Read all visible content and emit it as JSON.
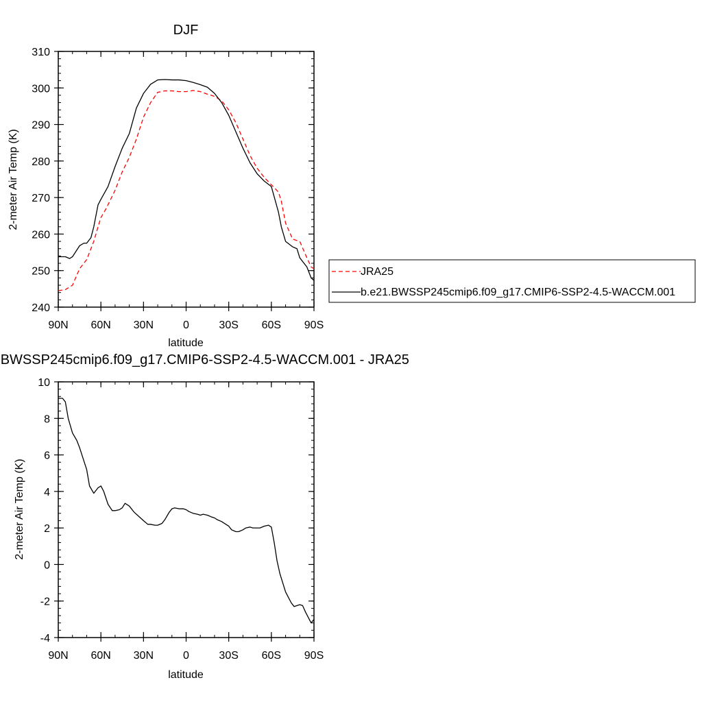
{
  "chart_data": [
    {
      "type": "line",
      "title": "DJF",
      "xlabel": "latitude",
      "ylabel": "2-meter Air Temp (K)",
      "xlim": [
        90,
        -90
      ],
      "ylim": [
        240,
        310
      ],
      "yticks": [
        240,
        250,
        260,
        270,
        280,
        290,
        300,
        310
      ],
      "xticks": [
        {
          "value": 90,
          "label": "90N"
        },
        {
          "value": 60,
          "label": "60N"
        },
        {
          "value": 30,
          "label": "30N"
        },
        {
          "value": 0,
          "label": "0"
        },
        {
          "value": -30,
          "label": "30S"
        },
        {
          "value": -60,
          "label": "60S"
        },
        {
          "value": -90,
          "label": "90S"
        }
      ],
      "legend": {
        "placement": "right",
        "entries": [
          {
            "name": "JRA25",
            "color": "#ff0000",
            "dash": "dashed"
          },
          {
            "name": "b.e21.BWSSP245cmip6.f09_g17.CMIP6-SSP2-4.5-WACCM.001",
            "color": "#000000",
            "dash": "solid"
          }
        ]
      },
      "series": [
        {
          "name": "JRA25",
          "color": "#ff0000",
          "dash": "dashed",
          "x": [
            90,
            85,
            80,
            75,
            70,
            65,
            62,
            60,
            57,
            55,
            50,
            45,
            40,
            35,
            30,
            25,
            20,
            15,
            10,
            5,
            0,
            -5,
            -10,
            -15,
            -20,
            -25,
            -30,
            -35,
            -40,
            -45,
            -50,
            -55,
            -60,
            -65,
            -67,
            -70,
            -75,
            -80,
            -85,
            -88,
            -90
          ],
          "y": [
            244.5,
            244.8,
            246.0,
            250.5,
            253.0,
            258.0,
            262.0,
            264.5,
            266.5,
            268.0,
            272.0,
            277.0,
            281.0,
            286.0,
            292.0,
            296.0,
            298.8,
            299.2,
            299.2,
            299.0,
            299.0,
            299.3,
            299.0,
            298.3,
            297.7,
            296.5,
            294.0,
            290.5,
            286.0,
            281.5,
            278.0,
            275.5,
            273.5,
            271.5,
            269.0,
            263.0,
            258.6,
            258.0,
            253.5,
            251.0,
            250.5
          ]
        },
        {
          "name": "b.e21.BWSSP245cmip6.f09_g17.CMIP6-SSP2-4.5-WACCM.001",
          "color": "#000000",
          "dash": "solid",
          "x": [
            90,
            85,
            82,
            80,
            75,
            72,
            70,
            67,
            65,
            62,
            60,
            55,
            50,
            45,
            40,
            35,
            30,
            25,
            20,
            15,
            10,
            5,
            0,
            -5,
            -10,
            -15,
            -20,
            -25,
            -30,
            -35,
            -40,
            -45,
            -50,
            -55,
            -60,
            -65,
            -67,
            -70,
            -75,
            -78,
            -80,
            -85,
            -88,
            -90
          ],
          "y": [
            253.8,
            253.8,
            253.3,
            253.8,
            256.8,
            257.5,
            257.5,
            259.0,
            262.0,
            268.0,
            269.5,
            273.0,
            278.5,
            283.5,
            287.5,
            294.5,
            298.5,
            301.0,
            302.2,
            302.3,
            302.2,
            302.2,
            302.0,
            301.5,
            300.9,
            300.2,
            298.5,
            296.0,
            292.5,
            288.0,
            283.5,
            279.5,
            276.5,
            274.5,
            273.0,
            266.0,
            262.0,
            258.0,
            256.5,
            256.0,
            253.5,
            251.0,
            248.0,
            247.3
          ]
        }
      ]
    },
    {
      "type": "line",
      "title": "b.e21.BWSSP245cmip6.f09_g17.CMIP6-SSP2-4.5-WACCM.001 - JRA25",
      "xlabel": "latitude",
      "ylabel": "2-meter Air Temp (K)",
      "xlim": [
        90,
        -90
      ],
      "ylim": [
        -4,
        10
      ],
      "yticks": [
        -4,
        -2,
        0,
        2,
        4,
        6,
        8,
        10
      ],
      "xticks": [
        {
          "value": 90,
          "label": "90N"
        },
        {
          "value": 60,
          "label": "60N"
        },
        {
          "value": 30,
          "label": "30N"
        },
        {
          "value": 0,
          "label": "0"
        },
        {
          "value": -30,
          "label": "30S"
        },
        {
          "value": -60,
          "label": "60S"
        },
        {
          "value": -90,
          "label": "90S"
        }
      ],
      "series": [
        {
          "name": "b.e21.BWSSP245cmip6.f09_g17.CMIP6-SSP2-4.5-WACCM.001 - JRA25",
          "color": "#000000",
          "dash": "solid",
          "x": [
            90,
            87,
            85,
            83,
            80,
            77,
            75,
            70,
            68,
            65,
            62,
            60,
            58,
            55,
            52,
            50,
            47,
            45,
            43,
            40,
            37,
            35,
            30,
            27,
            25,
            22,
            20,
            17,
            15,
            12,
            10,
            8,
            5,
            2,
            0,
            -2,
            -5,
            -8,
            -10,
            -12,
            -15,
            -18,
            -20,
            -22,
            -25,
            -28,
            -30,
            -32,
            -35,
            -37,
            -40,
            -42,
            -45,
            -47,
            -50,
            -52,
            -55,
            -58,
            -60,
            -62,
            -64,
            -66,
            -68,
            -70,
            -72,
            -74,
            -76,
            -78,
            -80,
            -82,
            -84,
            -86,
            -88,
            -90
          ],
          "y": [
            9.1,
            9.1,
            8.9,
            8.0,
            7.2,
            6.8,
            6.4,
            5.2,
            4.3,
            3.9,
            4.2,
            4.3,
            4.0,
            3.3,
            2.95,
            2.95,
            3.0,
            3.1,
            3.35,
            3.2,
            2.9,
            2.75,
            2.4,
            2.2,
            2.2,
            2.15,
            2.15,
            2.25,
            2.45,
            2.85,
            3.05,
            3.1,
            3.05,
            3.05,
            3.0,
            2.9,
            2.8,
            2.75,
            2.7,
            2.75,
            2.7,
            2.6,
            2.55,
            2.45,
            2.35,
            2.2,
            2.1,
            1.9,
            1.8,
            1.8,
            1.9,
            2.0,
            2.05,
            2.0,
            2.0,
            2.0,
            2.1,
            2.15,
            2.05,
            1.2,
            0.2,
            -0.5,
            -1.0,
            -1.5,
            -1.8,
            -2.1,
            -2.3,
            -2.25,
            -2.2,
            -2.25,
            -2.6,
            -2.9,
            -3.2,
            -3.0
          ]
        }
      ]
    }
  ]
}
